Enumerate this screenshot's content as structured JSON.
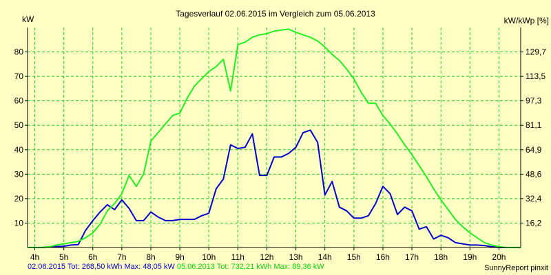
{
  "chart_data": {
    "type": "line",
    "title": "Tagesverlauf 02.06.2015 im Vergleich zum 05.06.2013",
    "ylabel_left": "kW",
    "ylabel_right": "kW/kWp [%]",
    "ylim": [
      0,
      90
    ],
    "xlim": [
      3.75,
      20.75
    ],
    "y_ticks": [
      10,
      20,
      30,
      40,
      50,
      60,
      70,
      80
    ],
    "y_right_ticks": [
      "16,2",
      "32,4",
      "48,6",
      "64,9",
      "81,1",
      "97,3",
      "113,5",
      "129,7"
    ],
    "x_ticks": [
      {
        "x": 4,
        "label": "4h"
      },
      {
        "x": 5,
        "label": "5h"
      },
      {
        "x": 6,
        "label": "6h"
      },
      {
        "x": 7,
        "label": "7h"
      },
      {
        "x": 8,
        "label": "8h"
      },
      {
        "x": 9,
        "label": "9h"
      },
      {
        "x": 10,
        "label": "10h"
      },
      {
        "x": 11,
        "label": "11h"
      },
      {
        "x": 12,
        "label": "12h"
      },
      {
        "x": 13,
        "label": "13h"
      },
      {
        "x": 14,
        "label": "14h"
      },
      {
        "x": 15,
        "label": "15h"
      },
      {
        "x": 16,
        "label": "16h"
      },
      {
        "x": 17,
        "label": "17h"
      },
      {
        "x": 18,
        "label": "18h"
      },
      {
        "x": 19,
        "label": "19h"
      },
      {
        "x": 20,
        "label": "20h"
      }
    ],
    "grid": true,
    "series": [
      {
        "legend": "02.06.2015 Tot: 268,50 kWh Max: 48,05 kW",
        "color": "#0000cc",
        "points": [
          [
            3.75,
            0
          ],
          [
            4.25,
            0
          ],
          [
            4.5,
            0.3
          ],
          [
            4.75,
            0.4
          ],
          [
            5,
            0.5
          ],
          [
            5.25,
            1
          ],
          [
            5.5,
            1.2
          ],
          [
            5.75,
            7
          ],
          [
            6,
            11
          ],
          [
            6.25,
            14.5
          ],
          [
            6.5,
            17.5
          ],
          [
            6.75,
            15.5
          ],
          [
            7,
            19.5
          ],
          [
            7.25,
            16
          ],
          [
            7.5,
            11
          ],
          [
            7.75,
            11
          ],
          [
            8,
            14.5
          ],
          [
            8.25,
            12.5
          ],
          [
            8.5,
            11
          ],
          [
            8.75,
            11
          ],
          [
            9,
            11.5
          ],
          [
            9.25,
            11.5
          ],
          [
            9.5,
            11.5
          ],
          [
            9.75,
            13
          ],
          [
            10,
            14
          ],
          [
            10.25,
            24
          ],
          [
            10.5,
            28
          ],
          [
            10.75,
            42
          ],
          [
            11,
            40.5
          ],
          [
            11.25,
            41
          ],
          [
            11.5,
            46.5
          ],
          [
            11.75,
            29.5
          ],
          [
            12,
            29.5
          ],
          [
            12.25,
            37
          ],
          [
            12.5,
            37
          ],
          [
            12.75,
            38.5
          ],
          [
            13,
            41
          ],
          [
            13.25,
            47
          ],
          [
            13.5,
            48
          ],
          [
            13.75,
            43
          ],
          [
            14,
            21.5
          ],
          [
            14.25,
            27
          ],
          [
            14.5,
            16.5
          ],
          [
            14.75,
            15
          ],
          [
            15,
            12
          ],
          [
            15.25,
            12
          ],
          [
            15.5,
            13
          ],
          [
            15.75,
            18
          ],
          [
            16,
            25
          ],
          [
            16.25,
            22
          ],
          [
            16.5,
            13.5
          ],
          [
            16.75,
            16.5
          ],
          [
            17,
            15
          ],
          [
            17.25,
            7.5
          ],
          [
            17.5,
            8.5
          ],
          [
            17.75,
            3.5
          ],
          [
            18,
            5
          ],
          [
            18.25,
            4
          ],
          [
            18.5,
            2
          ],
          [
            18.75,
            1.5
          ],
          [
            19,
            1
          ],
          [
            19.25,
            1
          ],
          [
            19.5,
            0.8
          ],
          [
            19.75,
            0.3
          ],
          [
            20,
            0
          ],
          [
            20.75,
            0
          ]
        ]
      },
      {
        "legend": "05.06.2013 Tot: 732,21 kWh Max: 89,36 kW",
        "color": "#22ee22",
        "points": [
          [
            3.75,
            0
          ],
          [
            4.25,
            0
          ],
          [
            4.5,
            0.3
          ],
          [
            4.75,
            1
          ],
          [
            5,
            1.5
          ],
          [
            5.25,
            2
          ],
          [
            5.5,
            2.5
          ],
          [
            5.75,
            4
          ],
          [
            6,
            6
          ],
          [
            6.25,
            9.5
          ],
          [
            6.5,
            15
          ],
          [
            6.75,
            18
          ],
          [
            7,
            22
          ],
          [
            7.25,
            29.5
          ],
          [
            7.5,
            25
          ],
          [
            7.75,
            30
          ],
          [
            8,
            43.5
          ],
          [
            8.25,
            47
          ],
          [
            8.5,
            50.5
          ],
          [
            8.75,
            54
          ],
          [
            9,
            55
          ],
          [
            9.25,
            61
          ],
          [
            9.5,
            66
          ],
          [
            9.75,
            69
          ],
          [
            10,
            72
          ],
          [
            10.25,
            74
          ],
          [
            10.5,
            77
          ],
          [
            10.75,
            64
          ],
          [
            11,
            83
          ],
          [
            11.25,
            84
          ],
          [
            11.5,
            86
          ],
          [
            11.75,
            87
          ],
          [
            12,
            87.5
          ],
          [
            12.25,
            88.5
          ],
          [
            12.5,
            89
          ],
          [
            12.75,
            89.3
          ],
          [
            13,
            88
          ],
          [
            13.25,
            87
          ],
          [
            13.5,
            86
          ],
          [
            13.75,
            84.5
          ],
          [
            14,
            82
          ],
          [
            14.25,
            79
          ],
          [
            14.5,
            76.5
          ],
          [
            14.75,
            73
          ],
          [
            15,
            69
          ],
          [
            15.25,
            63.5
          ],
          [
            15.5,
            59
          ],
          [
            15.75,
            59
          ],
          [
            16,
            54
          ],
          [
            16.25,
            50.5
          ],
          [
            16.5,
            46.5
          ],
          [
            16.75,
            42
          ],
          [
            17,
            38
          ],
          [
            17.25,
            33.5
          ],
          [
            17.5,
            29
          ],
          [
            17.75,
            24
          ],
          [
            18,
            19.5
          ],
          [
            18.25,
            15.5
          ],
          [
            18.5,
            11.5
          ],
          [
            18.75,
            8.5
          ],
          [
            19,
            6
          ],
          [
            19.25,
            4
          ],
          [
            19.5,
            2
          ],
          [
            19.75,
            1
          ],
          [
            20,
            0.3
          ],
          [
            20.25,
            0
          ],
          [
            20.75,
            0
          ]
        ]
      }
    ]
  },
  "footer": {
    "legend_blue": "02.06.2015 Tot: 268,50 kWh Max: 48,05 kW",
    "legend_green": "05.06.2013 Tot: 732,21 kWh Max: 89,36 kW",
    "credit": "SunnyReport pinxit"
  },
  "colors": {
    "background": "#ffffc4",
    "grid": "#22cc22",
    "blue_series": "#0000cc",
    "green_series": "#22ee22",
    "axis": "#000000"
  }
}
